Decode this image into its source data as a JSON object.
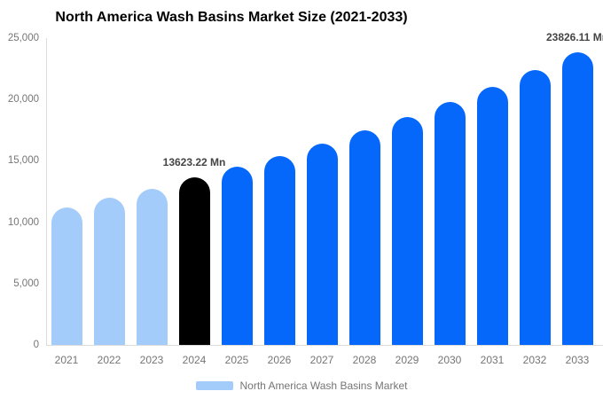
{
  "title": "North America Wash Basins Market Size (2021-2033)",
  "chart_data": {
    "type": "bar",
    "title": "North America Wash Basins Market Size (2021-2033)",
    "categories": [
      "2021",
      "2022",
      "2023",
      "2024",
      "2025",
      "2026",
      "2027",
      "2028",
      "2029",
      "2030",
      "2031",
      "2032",
      "2033"
    ],
    "values": [
      11200,
      11970,
      12700,
      13623.22,
      14497,
      15426,
      16415,
      17467,
      18586,
      19777,
      21045,
      22394,
      23826.11
    ],
    "unit": "Mn",
    "bar_colors": [
      "#a3ccfa",
      "#a3ccfa",
      "#a3ccfa",
      "#000000",
      "#0568fb",
      "#0568fb",
      "#0568fb",
      "#0568fb",
      "#0568fb",
      "#0568fb",
      "#0568fb",
      "#0568fb",
      "#0568fb"
    ],
    "ylim": [
      0,
      25000
    ],
    "yticks": [
      {
        "value": 0,
        "label": "0"
      },
      {
        "value": 5000,
        "label": "5,000"
      },
      {
        "value": 10000,
        "label": "10,000"
      },
      {
        "value": 15000,
        "label": "15,000"
      },
      {
        "value": 20000,
        "label": "20,000"
      },
      {
        "value": 25000,
        "label": "25,000"
      }
    ],
    "annotations": [
      {
        "category": "2024",
        "text": "13623.22 Mn"
      },
      {
        "category": "2033",
        "text": "23826.11 Mn"
      }
    ],
    "grid": false,
    "legend_position": "bottom",
    "legend": [
      {
        "label": "North America Wash Basins Market",
        "color": "#a3ccfa"
      }
    ]
  },
  "colors": {
    "series_light": "#a3ccfa",
    "series_highlight": "#000000",
    "series_forecast": "#0568fb",
    "axis_line": "#dcdcdc",
    "tick_text": "#757575",
    "label_text": "#444444",
    "title_text": "#000000",
    "background": "#ffffff"
  }
}
